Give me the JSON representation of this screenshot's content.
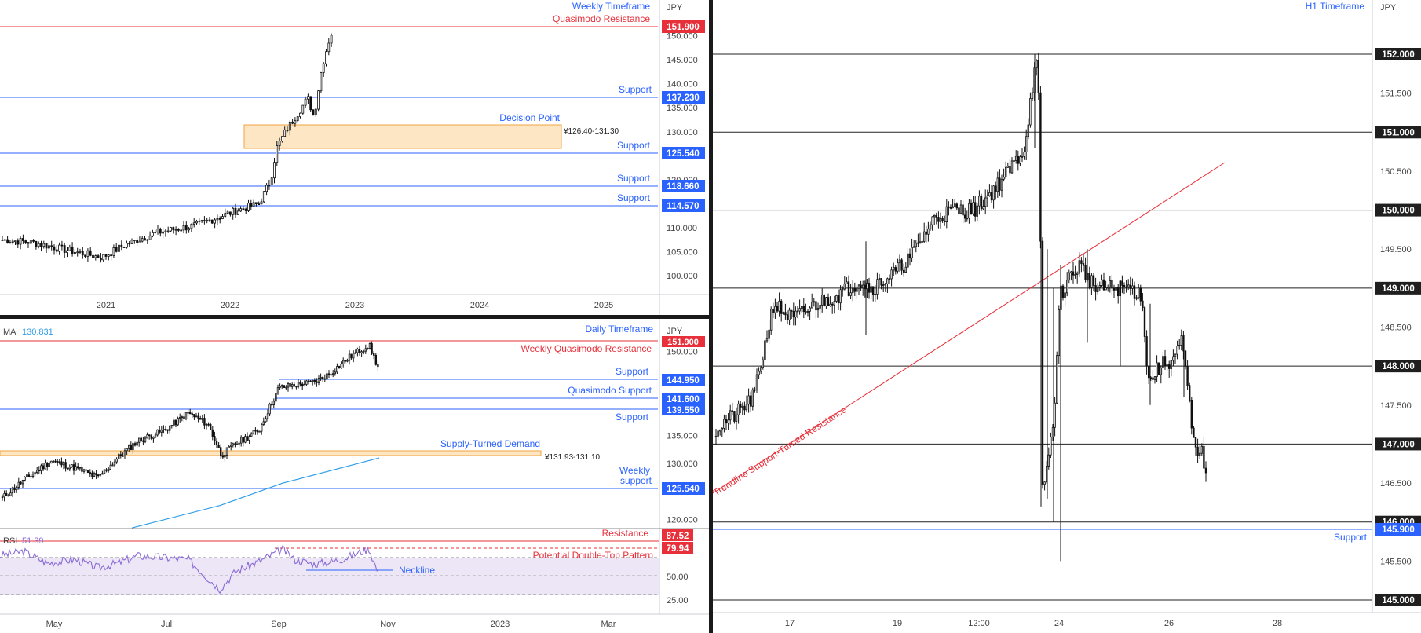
{
  "colors": {
    "resistance": "#e8303a",
    "support": "#2962ff",
    "label_blue": "#2962ff",
    "candle": "#111111",
    "zone_fill": "#fde6c4",
    "zone_stroke": "#f2a340",
    "ma": "#2f9ee8",
    "rsi_line": "#8a6bd6",
    "rsi_band": "#ece6f7",
    "trendline": "#e8303a",
    "grid_black": "#222222"
  },
  "weekly": {
    "currency": "JPY",
    "title": "Weekly Timeframe",
    "y_ticks": [
      "150.000",
      "145.000",
      "140.000",
      "135.000",
      "130.000",
      "125.000",
      "120.000",
      "115.000",
      "110.000",
      "105.000",
      "100.000"
    ],
    "x_ticks": [
      "2021",
      "2022",
      "2023",
      "2024",
      "2025"
    ],
    "levels": [
      {
        "label": "Quasimodo Resistance",
        "price_tag": "151.900",
        "kind": "resistance"
      },
      {
        "label": "Support",
        "price_tag": "137.230",
        "kind": "support"
      },
      {
        "label": "Support",
        "price_tag": "125.540",
        "kind": "support"
      },
      {
        "label": "Support",
        "price_tag": "118.660",
        "kind": "support"
      },
      {
        "label": "Support",
        "price_tag": "114.570",
        "kind": "support"
      }
    ],
    "zone": {
      "label": "Decision Point",
      "range_text": "¥126.40-131.30"
    }
  },
  "daily": {
    "currency": "JPY",
    "title": "Daily Timeframe",
    "ma_label": "MA",
    "ma_value": "130.831",
    "y_ticks": [
      "150.000",
      "145.000",
      "140.000",
      "135.000",
      "130.000",
      "125.000",
      "120.000"
    ],
    "x_ticks": [
      "May",
      "Jul",
      "Sep",
      "Nov",
      "2023",
      "Mar"
    ],
    "levels": [
      {
        "label": "Weekly Quasimodo Resistance",
        "price_tag": "151.900",
        "kind": "resistance"
      },
      {
        "label": "Support",
        "price_tag": "144.950",
        "kind": "support"
      },
      {
        "label": "Quasimodo Support",
        "price_tag": "141.600",
        "kind": "support"
      },
      {
        "label": "Support",
        "price_tag": "139.550",
        "kind": "support"
      },
      {
        "label": "Weekly",
        "label2": "support",
        "price_tag": "125.540",
        "kind": "support"
      }
    ],
    "zone": {
      "label": "Supply-Turned Demand",
      "range_text": "¥131.93-131.10"
    }
  },
  "rsi": {
    "label": "RSI",
    "value": "51.39",
    "ticks": [
      "50.00",
      "25.00"
    ],
    "resistance_label": "Resistance",
    "resistance_tag": "87.52",
    "rsi_tag": "79.94",
    "pattern_label": "Potential Double-Top Pattern",
    "neckline_label": "Neckline"
  },
  "h1": {
    "currency": "JPY",
    "title": "H1 Timeframe",
    "y_ticks": [
      "151.500",
      "150.500",
      "149.500",
      "148.500",
      "147.500",
      "146.500",
      "145.500"
    ],
    "level_tags": [
      "152.000",
      "151.000",
      "150.000",
      "149.000",
      "148.000",
      "147.000",
      "146.000",
      "145.000"
    ],
    "support_label": "Support",
    "support_tag": "145.900",
    "trendline_label": "Trendline Support-Turned Resistance",
    "x_ticks": [
      "17",
      "19",
      "12:00",
      "24",
      "26",
      "28"
    ]
  },
  "chart_data": [
    {
      "type": "candlestick",
      "title": "Weekly Timeframe",
      "ylabel": "JPY",
      "ylim": [
        95,
        154
      ],
      "x_ticks": [
        "2021",
        "2022",
        "2023",
        "2024",
        "2025"
      ],
      "horizontal_levels": [
        151.9,
        137.23,
        125.54,
        118.66,
        114.57
      ],
      "zones": [
        {
          "label": "Decision Point",
          "low": 126.4,
          "high": 131.3
        }
      ],
      "close_path": [
        {
          "x": "2020-03",
          "y": 107.5
        },
        {
          "x": "2020-06",
          "y": 107.2
        },
        {
          "x": "2020-09",
          "y": 105.5
        },
        {
          "x": "2020-12",
          "y": 103.5
        },
        {
          "x": "2021-02",
          "y": 106
        },
        {
          "x": "2021-04",
          "y": 109
        },
        {
          "x": "2021-07",
          "y": 110.5
        },
        {
          "x": "2021-10",
          "y": 113.5
        },
        {
          "x": "2022-01",
          "y": 115
        },
        {
          "x": "2022-03",
          "y": 120
        },
        {
          "x": "2022-04",
          "y": 129.5
        },
        {
          "x": "2022-06",
          "y": 134
        },
        {
          "x": "2022-07",
          "y": 137
        },
        {
          "x": "2022-08",
          "y": 133
        },
        {
          "x": "2022-09",
          "y": 143.5
        },
        {
          "x": "2022-10",
          "y": 148.5
        }
      ]
    },
    {
      "type": "candlestick",
      "title": "Daily Timeframe",
      "ylabel": "JPY",
      "ylim": [
        118,
        155
      ],
      "x_ticks": [
        "May",
        "Jul",
        "Sep",
        "Nov",
        "2023",
        "Mar"
      ],
      "horizontal_levels": [
        151.9,
        144.95,
        141.6,
        139.55,
        125.54
      ],
      "zones": [
        {
          "label": "Supply-Turned Demand",
          "low": 131.1,
          "high": 131.93
        }
      ],
      "ma_value": 130.831,
      "close_path": [
        {
          "x": "2022-04-05",
          "y": 123.5
        },
        {
          "x": "2022-04-28",
          "y": 130
        },
        {
          "x": "2022-05-20",
          "y": 127.5
        },
        {
          "x": "2022-06-10",
          "y": 134
        },
        {
          "x": "2022-07-14",
          "y": 139
        },
        {
          "x": "2022-08-02",
          "y": 131
        },
        {
          "x": "2022-08-20",
          "y": 136
        },
        {
          "x": "2022-09-07",
          "y": 144
        },
        {
          "x": "2022-09-22",
          "y": 143.5
        },
        {
          "x": "2022-10-10",
          "y": 146
        },
        {
          "x": "2022-10-21",
          "y": 151.9
        },
        {
          "x": "2022-10-27",
          "y": 146.5
        }
      ],
      "ma_path": [
        {
          "x": "2022-06-01",
          "y": 118.5
        },
        {
          "x": "2022-08-10",
          "y": 123
        },
        {
          "x": "2022-09-30",
          "y": 127
        },
        {
          "x": "2022-10-27",
          "y": 130.8
        }
      ]
    },
    {
      "type": "line",
      "title": "RSI",
      "ylim": [
        15,
        100
      ],
      "x_ticks": [
        "May",
        "Jul",
        "Sep",
        "Nov",
        "2023",
        "Mar"
      ],
      "horizontal_levels": [
        87.52,
        70,
        50,
        30
      ],
      "value": 51.39,
      "path": [
        {
          "x": "2022-04-05",
          "y": 73
        },
        {
          "x": "2022-04-28",
          "y": 78
        },
        {
          "x": "2022-05-20",
          "y": 58
        },
        {
          "x": "2022-06-10",
          "y": 70
        },
        {
          "x": "2022-07-14",
          "y": 72
        },
        {
          "x": "2022-08-02",
          "y": 40
        },
        {
          "x": "2022-08-20",
          "y": 60
        },
        {
          "x": "2022-09-07",
          "y": 79
        },
        {
          "x": "2022-09-22",
          "y": 62
        },
        {
          "x": "2022-10-10",
          "y": 68
        },
        {
          "x": "2022-10-21",
          "y": 79.9
        },
        {
          "x": "2022-10-27",
          "y": 51.4
        }
      ]
    },
    {
      "type": "candlestick",
      "title": "H1 Timeframe",
      "ylabel": "JPY",
      "ylim": [
        144.8,
        152.6
      ],
      "x_ticks": [
        "17",
        "19",
        "12:00",
        "24",
        "26",
        "28"
      ],
      "horizontal_levels": [
        152,
        151,
        150,
        149,
        148,
        147,
        146,
        145,
        145.9
      ],
      "trendline": {
        "label": "Trendline Support-Turned Resistance",
        "from": {
          "x": "16",
          "y": 146.5
        },
        "to": {
          "x": "27",
          "y": 150.6
        }
      },
      "close_path": [
        {
          "x": "16.0",
          "y": 147.2
        },
        {
          "x": "16.8",
          "y": 147.3
        },
        {
          "x": "17.5",
          "y": 148.7
        },
        {
          "x": "18.2",
          "y": 148.8
        },
        {
          "x": "19.0",
          "y": 149.0
        },
        {
          "x": "19.5",
          "y": 149.3
        },
        {
          "x": "20.3",
          "y": 150.0
        },
        {
          "x": "21.0",
          "y": 150.0
        },
        {
          "x": "21.7",
          "y": 150.5
        },
        {
          "x": "22.0",
          "y": 151.6
        },
        {
          "x": "22.3",
          "y": 146.3
        },
        {
          "x": "22.6",
          "y": 149.0
        },
        {
          "x": "23.0",
          "y": 149.3
        },
        {
          "x": "23.4",
          "y": 149.0
        },
        {
          "x": "24.0",
          "y": 149.0
        },
        {
          "x": "24.6",
          "y": 148.0
        },
        {
          "x": "25.1",
          "y": 148.3
        },
        {
          "x": "25.5",
          "y": 147.0
        },
        {
          "x": "25.8",
          "y": 146.5
        }
      ]
    }
  ]
}
